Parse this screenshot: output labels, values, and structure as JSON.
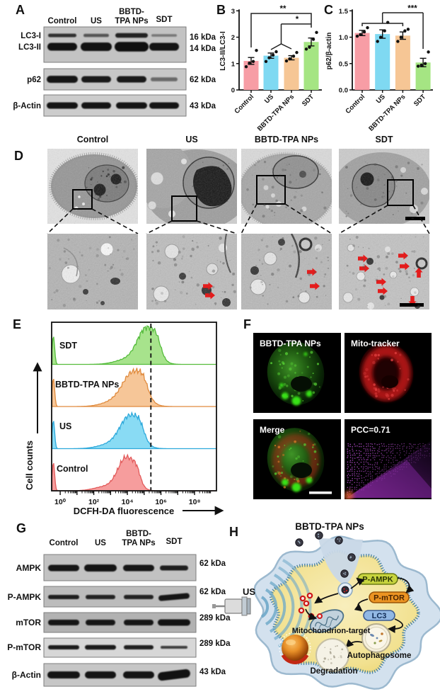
{
  "panel_labels": {
    "a": "A",
    "b": "B",
    "c": "C",
    "d": "D",
    "e": "E",
    "f": "F",
    "g": "G",
    "h": "H"
  },
  "panel_a": {
    "lane_headers": [
      "Control",
      "US",
      "BBTD-",
      "TPA NPs",
      "SDT"
    ],
    "row_left": [
      "LC3-I",
      "LC3-II",
      "p62",
      "β-Actin"
    ],
    "row_right": [
      "16 kDa",
      "14 kDa",
      "62 kDa",
      "43 kDa"
    ]
  },
  "chart_data": [
    {
      "id": "B",
      "type": "bar",
      "ylabel": "LC3-II/LC3-I",
      "ylim": [
        0,
        3
      ],
      "yticks": [
        "0",
        "1",
        "2",
        "3"
      ],
      "categories": [
        "Control",
        "US",
        "BBTD-TPA NPs",
        "SDT"
      ],
      "values": [
        1.1,
        1.3,
        1.22,
        1.82
      ],
      "errors": [
        0.13,
        0.1,
        0.08,
        0.15
      ],
      "points": [
        [
          0.88,
          1.02,
          1.08,
          1.5
        ],
        [
          1.08,
          1.22,
          1.32,
          1.45
        ],
        [
          1.1,
          1.18,
          1.28,
          1.42
        ],
        [
          1.55,
          1.62,
          1.92,
          2.18
        ]
      ],
      "colors": [
        "#F79DA5",
        "#7FD9F2",
        "#F6C695",
        "#A5E583"
      ],
      "significance": [
        {
          "label": "**",
          "groups": [
            "Control",
            "SDT"
          ]
        },
        {
          "label": "*",
          "groups": [
            "US & BBTD-TPA NPs",
            "SDT"
          ]
        }
      ]
    },
    {
      "id": "C",
      "type": "bar",
      "ylabel": "p62/β-actin",
      "ylim": [
        0,
        1.5
      ],
      "yticks": [
        "0.0",
        "0.5",
        "1.0",
        "1.5"
      ],
      "categories": [
        "Control",
        "US",
        "BBTD-TPA NPs",
        "SDT"
      ],
      "values": [
        1.08,
        1.06,
        1.03,
        0.52
      ],
      "errors": [
        0.05,
        0.08,
        0.07,
        0.08
      ],
      "points": [
        [
          1.02,
          1.05,
          1.1,
          1.18
        ],
        [
          0.92,
          1.0,
          1.12,
          1.28
        ],
        [
          0.92,
          1.0,
          1.12,
          1.15
        ],
        [
          0.45,
          0.47,
          0.5,
          0.72
        ]
      ],
      "colors": [
        "#F79DA5",
        "#7FD9F2",
        "#F6C695",
        "#A5E583"
      ],
      "significance": [
        {
          "label": "***",
          "groups": [
            "Control & US & BBTD-TPA NPs",
            "SDT"
          ]
        }
      ]
    },
    {
      "id": "E",
      "type": "area",
      "xlabel": "DCFH-DA fluorescence",
      "ylabel": "Cell counts",
      "xticks": [
        "10⁰",
        "10²",
        "10⁴",
        "10⁶",
        "10⁸"
      ],
      "gate_log10": 5.4,
      "series": [
        {
          "name": "SDT",
          "peak_log10": 5.15,
          "sigma": 0.55,
          "fill": "#9FE182",
          "stroke": "#55BC3C"
        },
        {
          "name": "BBTD-TPA NPs",
          "peak_log10": 4.35,
          "sigma": 0.62,
          "fill": "#F5C18F",
          "stroke": "#E08B3E"
        },
        {
          "name": "US",
          "peak_log10": 4.15,
          "sigma": 0.58,
          "fill": "#7FD8F3",
          "stroke": "#2EA9DB"
        },
        {
          "name": "Control",
          "peak_log10": 3.95,
          "sigma": 0.5,
          "fill": "#F59595",
          "stroke": "#E25B5B"
        }
      ]
    }
  ],
  "panel_d": {
    "column_headers": [
      "Control",
      "US",
      "BBTD-TPA NPs",
      "SDT"
    ]
  },
  "panel_f": {
    "image_labels": [
      "BBTD-TPA NPs",
      "Mito-tracker",
      "Merge",
      "PCC=0.71"
    ]
  },
  "panel_g": {
    "lane_headers": [
      "Control",
      "US",
      "BBTD-",
      "TPA NPs",
      "SDT"
    ],
    "row_left": [
      "AMPK",
      "P-AMPK",
      "mTOR",
      "P-mTOR",
      "β-Actin"
    ],
    "row_right": [
      "62 kDa",
      "62 kDa",
      "289 kDa",
      "289 kDa",
      "43 kDa"
    ]
  },
  "panel_h": {
    "title": "BBTD-TPA NPs",
    "us_label": "US",
    "badges": [
      "P-AMPK",
      "P-mTOR",
      "LC3"
    ],
    "mito_label": "Mitochondrion-target",
    "autophagosome_label": "Autophagosome",
    "degradation_label": "Degradation"
  }
}
